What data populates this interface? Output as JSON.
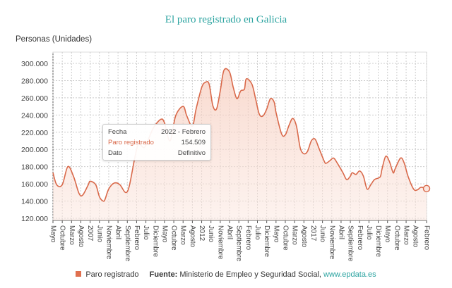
{
  "chart_data": {
    "type": "area",
    "title": "El paro registrado en Galicia",
    "ylabel": "Personas (Unidades)",
    "ylim": [
      120000,
      300000
    ],
    "yticks": [
      "120.000",
      "140.000",
      "160.000",
      "180.000",
      "200.000",
      "220.000",
      "240.000",
      "260.000",
      "280.000",
      "300.000"
    ],
    "ytick_values": [
      120000,
      140000,
      160000,
      180000,
      200000,
      220000,
      240000,
      260000,
      280000,
      300000
    ],
    "xrange": [
      "2005-05",
      "2022-02"
    ],
    "xtick_labels": [
      "Mayo",
      "Octubre",
      "Marzo",
      "Agosto",
      "2007",
      "Junio",
      "Noviembre",
      "Abril",
      "Septiembre",
      "Febrero",
      "Julio",
      "Diciembre",
      "Mayo",
      "Octubre",
      "Marzo",
      "Agosto",
      "2012",
      "Junio",
      "Noviembre",
      "Abril",
      "Septiembre",
      "Febrero",
      "Julio",
      "Diciembre",
      "Mayo",
      "Octubre",
      "Marzo",
      "Agosto",
      "2017",
      "Junio",
      "Noviembre",
      "Abril",
      "Septiembre",
      "Febrero",
      "Julio",
      "Diciembre",
      "Mayo",
      "Octubre",
      "Marzo",
      "Agosto",
      "Febrero"
    ],
    "xtick_dates": [
      "2005-05",
      "2005-10",
      "2006-03",
      "2006-08",
      "2007-01",
      "2007-06",
      "2007-11",
      "2008-04",
      "2008-09",
      "2009-02",
      "2009-07",
      "2009-12",
      "2010-05",
      "2010-10",
      "2011-03",
      "2011-08",
      "2012-01",
      "2012-06",
      "2012-11",
      "2013-04",
      "2013-09",
      "2014-02",
      "2014-07",
      "2014-12",
      "2015-05",
      "2015-10",
      "2016-03",
      "2016-08",
      "2017-01",
      "2017-06",
      "2017-11",
      "2018-04",
      "2018-09",
      "2019-02",
      "2019-07",
      "2019-12",
      "2020-05",
      "2020-10",
      "2021-03",
      "2021-08",
      "2022-02"
    ],
    "grid": true,
    "legend_placement": "bottom",
    "series": [
      {
        "name": "Paro registrado",
        "color": "#d9694a",
        "points": [
          [
            "2005-05",
            173000
          ],
          [
            "2005-07",
            159000
          ],
          [
            "2005-10",
            159000
          ],
          [
            "2006-01",
            180000
          ],
          [
            "2006-04",
            169000
          ],
          [
            "2006-07",
            149000
          ],
          [
            "2006-09",
            147000
          ],
          [
            "2006-12",
            159000
          ],
          [
            "2007-01",
            163000
          ],
          [
            "2007-04",
            159000
          ],
          [
            "2007-06",
            145000
          ],
          [
            "2007-08",
            140000
          ],
          [
            "2007-09",
            142000
          ],
          [
            "2007-11",
            154000
          ],
          [
            "2008-02",
            161000
          ],
          [
            "2008-05",
            159000
          ],
          [
            "2008-08",
            150000
          ],
          [
            "2008-10",
            157000
          ],
          [
            "2009-01",
            190000
          ],
          [
            "2009-03",
            206000
          ],
          [
            "2009-06",
            202000
          ],
          [
            "2009-08",
            210000
          ],
          [
            "2009-11",
            225000
          ],
          [
            "2010-03",
            235000
          ],
          [
            "2010-05",
            231000
          ],
          [
            "2010-08",
            210000
          ],
          [
            "2010-11",
            239000
          ],
          [
            "2011-03",
            250000
          ],
          [
            "2011-05",
            239000
          ],
          [
            "2011-08",
            227000
          ],
          [
            "2011-10",
            247000
          ],
          [
            "2012-01",
            272000
          ],
          [
            "2012-03",
            278000
          ],
          [
            "2012-05",
            276000
          ],
          [
            "2012-07",
            251000
          ],
          [
            "2012-09",
            247000
          ],
          [
            "2012-11",
            268000
          ],
          [
            "2013-01",
            292000
          ],
          [
            "2013-04",
            290000
          ],
          [
            "2013-06",
            272000
          ],
          [
            "2013-08",
            259000
          ],
          [
            "2013-10",
            268000
          ],
          [
            "2013-12",
            270000
          ],
          [
            "2014-01",
            282000
          ],
          [
            "2014-04",
            276000
          ],
          [
            "2014-06",
            259000
          ],
          [
            "2014-08",
            241000
          ],
          [
            "2014-10",
            239000
          ],
          [
            "2014-12",
            247000
          ],
          [
            "2015-02",
            259000
          ],
          [
            "2015-04",
            255000
          ],
          [
            "2015-05",
            243000
          ],
          [
            "2015-08",
            218000
          ],
          [
            "2015-10",
            217000
          ],
          [
            "2015-12",
            228000
          ],
          [
            "2016-02",
            236000
          ],
          [
            "2016-04",
            227000
          ],
          [
            "2016-06",
            202000
          ],
          [
            "2016-08",
            195000
          ],
          [
            "2016-10",
            198000
          ],
          [
            "2016-12",
            210000
          ],
          [
            "2017-02",
            212000
          ],
          [
            "2017-04",
            202000
          ],
          [
            "2017-07",
            186000
          ],
          [
            "2017-08",
            184000
          ],
          [
            "2017-10",
            187000
          ],
          [
            "2017-12",
            190000
          ],
          [
            "2018-02",
            184000
          ],
          [
            "2018-05",
            173000
          ],
          [
            "2018-07",
            165000
          ],
          [
            "2018-09",
            169000
          ],
          [
            "2018-10",
            173000
          ],
          [
            "2018-12",
            171000
          ],
          [
            "2019-02",
            175000
          ],
          [
            "2019-04",
            169000
          ],
          [
            "2019-06",
            154000
          ],
          [
            "2019-08",
            159000
          ],
          [
            "2019-10",
            165000
          ],
          [
            "2020-01",
            168000
          ],
          [
            "2020-02",
            177000
          ],
          [
            "2020-04",
            192000
          ],
          [
            "2020-06",
            186000
          ],
          [
            "2020-08",
            173000
          ],
          [
            "2020-09",
            177000
          ],
          [
            "2020-12",
            190000
          ],
          [
            "2021-02",
            184000
          ],
          [
            "2021-04",
            169000
          ],
          [
            "2021-07",
            154000
          ],
          [
            "2021-09",
            153000
          ],
          [
            "2021-11",
            156000
          ],
          [
            "2022-02",
            154509
          ]
        ]
      }
    ]
  },
  "tooltip": {
    "rows": [
      {
        "label": "Fecha",
        "value": "2022 - Febrero"
      },
      {
        "label": "Paro registrado",
        "value": "154.509"
      },
      {
        "label": "Dato",
        "value": "Definitivo"
      }
    ]
  },
  "legend": {
    "series_label": "Paro registrado",
    "source_label": "Fuente:",
    "source_text": "Ministerio de Empleo y Seguridad Social,",
    "source_link": "www.epdata.es"
  }
}
